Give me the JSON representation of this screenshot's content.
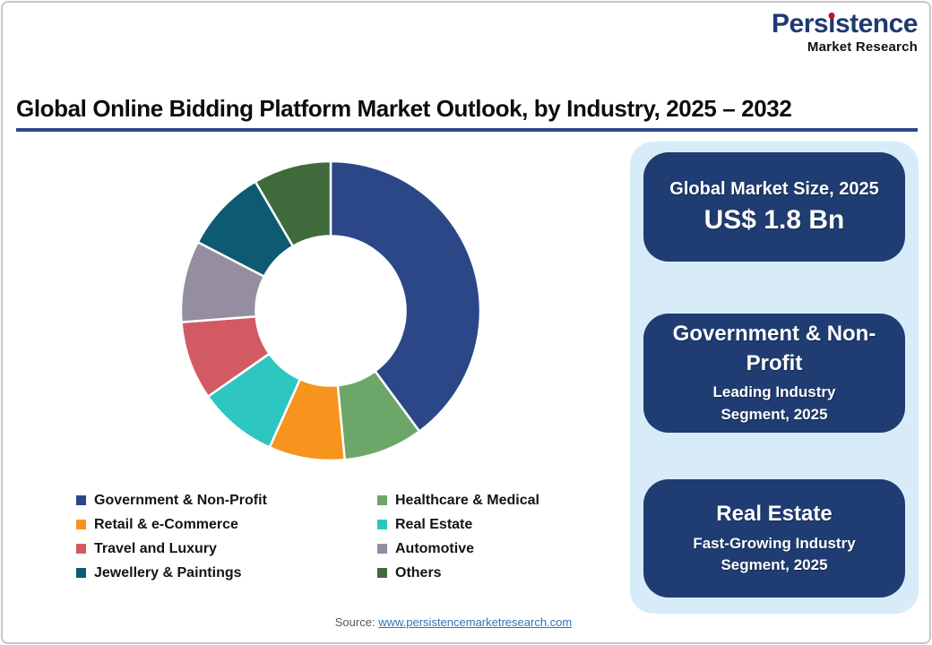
{
  "logo": {
    "name_pre": "Pers",
    "name_i": "i",
    "name_post": "stence",
    "subtitle": "Market Research",
    "brand_color": "#1e3a70",
    "dot_color": "#cc1022"
  },
  "header": {
    "title": "Global Online Bidding Platform Market Outlook, by Industry, 2025 – 2032",
    "rule_color": "#2e4a8c"
  },
  "chart_data": {
    "type": "pie",
    "subtype": "donut",
    "title": "Global Online Bidding Platform Market Outlook, by Industry, 2025 – 2032",
    "categories": [
      "Government & Non-Profit",
      "Healthcare & Medical",
      "Retail & e-Commerce",
      "Real Estate",
      "Travel and Luxury",
      "Automotive",
      "Jewellery & Paintings",
      "Others"
    ],
    "values": [
      39.9,
      8.6,
      8.2,
      8.6,
      8.5,
      8.8,
      9.0,
      8.4
    ],
    "values_unit": "% share, estimated from arc angles (no data labels shown)",
    "colors": [
      "#2b4787",
      "#6ca769",
      "#f7941e",
      "#2ec6c0",
      "#d25b63",
      "#958ea1",
      "#0e5a73",
      "#3f6b3c"
    ],
    "start_angle_deg": 0,
    "direction": "clockwise",
    "inner_radius_ratio": 0.5,
    "segment_gap_color": "#ffffff",
    "legend_position": "bottom",
    "legend_columns": 2
  },
  "sidebar": {
    "background": "#d7ecf8",
    "card_background": "#1f3d73",
    "cards": [
      {
        "title": "Global Market Size, 2025",
        "value": "US$ 1.8 Bn"
      },
      {
        "title": "Government & Non-Profit",
        "subtitle": "Leading Industry Segment, 2025"
      },
      {
        "title": "Real Estate",
        "subtitle": "Fast-Growing Industry Segment, 2025"
      }
    ]
  },
  "footer": {
    "source_label": "Source:",
    "source_link": "www.persistencemarketresearch.com"
  }
}
